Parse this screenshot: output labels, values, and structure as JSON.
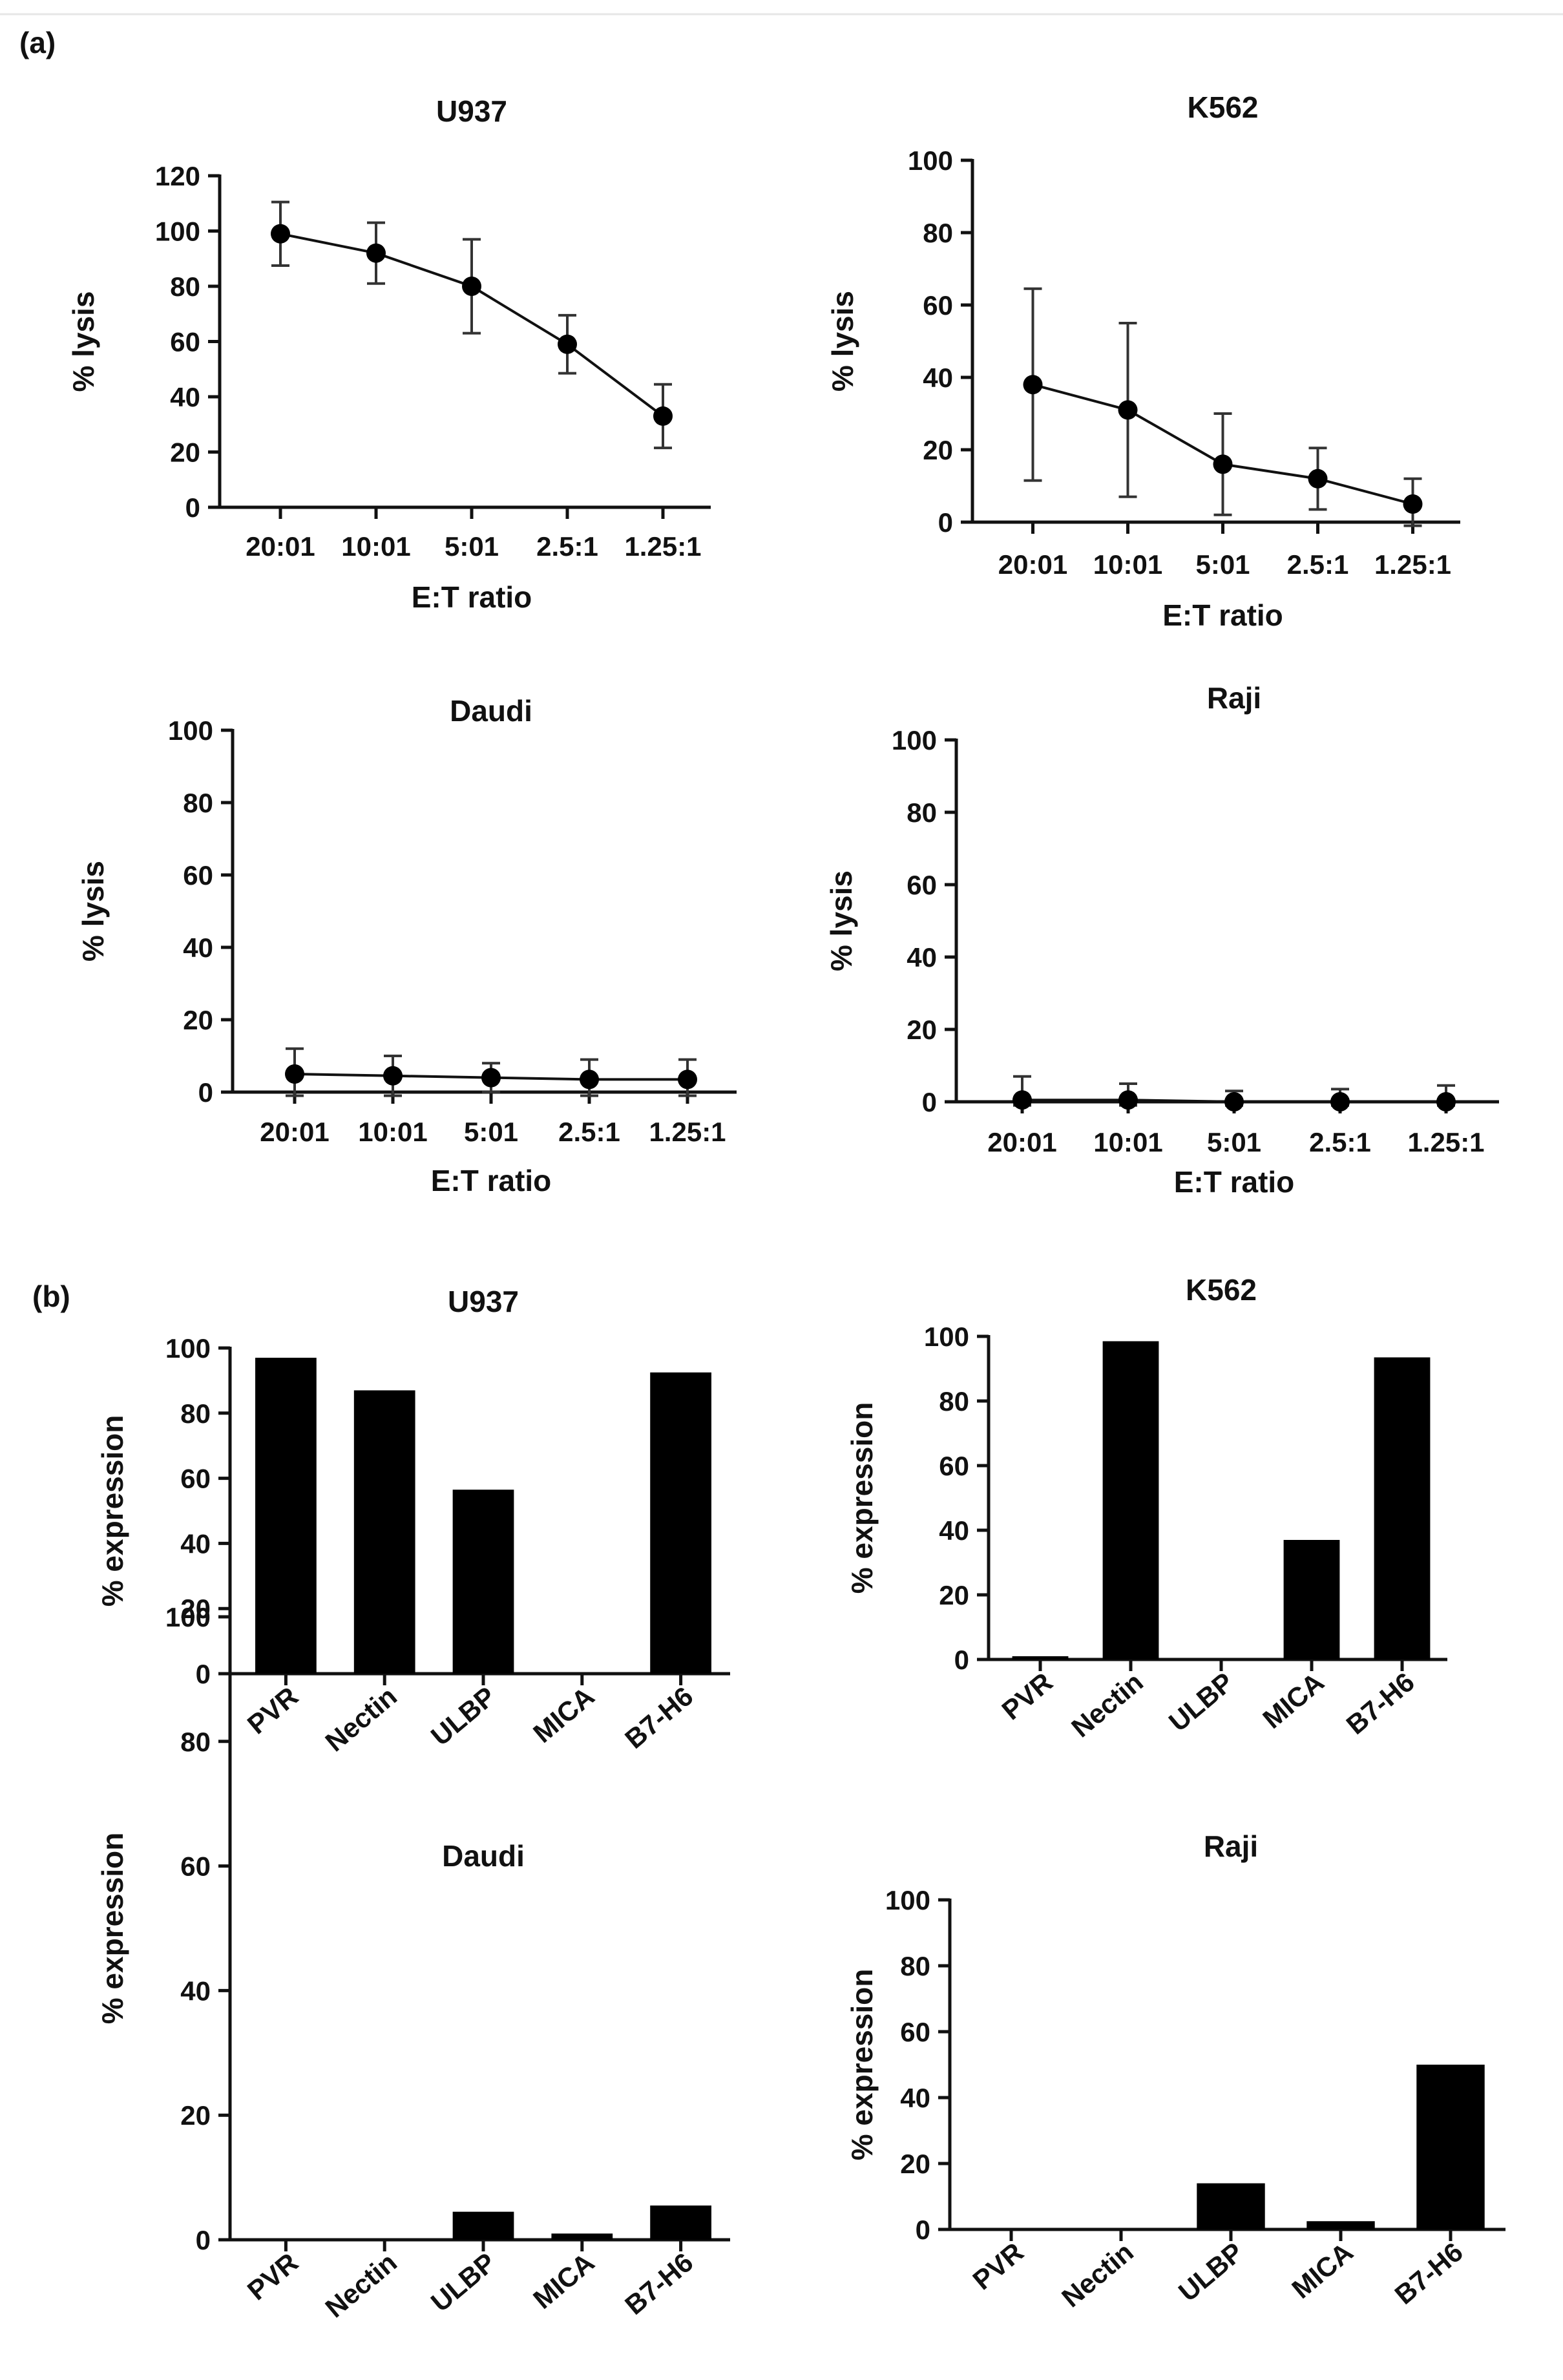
{
  "panels": {
    "a": "(a)",
    "b": "(b)"
  },
  "chart_data": [
    {
      "type": "line",
      "title": "U937",
      "xlabel": "E:T ratio",
      "ylabel": "% lysis",
      "categories": [
        "20:01",
        "10:01",
        "5:01",
        "2.5:1",
        "1.25:1"
      ],
      "values": [
        99,
        92,
        80,
        59,
        33
      ],
      "errors": [
        11.5,
        11,
        17,
        10.5,
        11.5
      ],
      "ylim": [
        0,
        120
      ],
      "yticks": [
        0,
        20,
        40,
        60,
        80,
        100,
        120
      ]
    },
    {
      "type": "line",
      "title": "K562",
      "xlabel": "E:T ratio",
      "ylabel": "% lysis",
      "categories": [
        "20:01",
        "10:01",
        "5:01",
        "2.5:1",
        "1.25:1"
      ],
      "values": [
        38,
        31,
        16,
        12,
        5
      ],
      "errors": [
        26.5,
        24,
        14,
        8.5,
        7
      ],
      "ylim": [
        0,
        100
      ],
      "yticks": [
        0,
        20,
        40,
        60,
        80,
        100
      ]
    },
    {
      "type": "line",
      "title": "Daudi",
      "xlabel": "E:T ratio",
      "ylabel": "% lysis",
      "categories": [
        "20:01",
        "10:01",
        "5:01",
        "2.5:1",
        "1.25:1"
      ],
      "values": [
        5,
        4.5,
        4,
        3.5,
        3.5
      ],
      "errors": [
        7,
        5.5,
        4,
        5.5,
        5.5
      ],
      "ylim": [
        0,
        100
      ],
      "yticks": [
        0,
        20,
        40,
        60,
        80,
        100
      ]
    },
    {
      "type": "line",
      "title": "Raji",
      "xlabel": "E:T ratio",
      "ylabel": "% lysis",
      "categories": [
        "20:01",
        "10:01",
        "5:01",
        "2.5:1",
        "1.25:1"
      ],
      "values": [
        0.5,
        0.5,
        0,
        0,
        0
      ],
      "errors": [
        6.5,
        4.5,
        3,
        3.5,
        4.5
      ],
      "ylim": [
        0,
        100
      ],
      "yticks": [
        0,
        20,
        40,
        60,
        80,
        100
      ]
    },
    {
      "type": "bar",
      "title": "U937",
      "xlabel": "",
      "ylabel": "% expression",
      "categories": [
        "PVR",
        "Nectin",
        "ULBP",
        "MICA",
        "B7-H6"
      ],
      "values": [
        97,
        87,
        56.5,
        0,
        92.5
      ],
      "ylim": [
        0,
        100
      ],
      "yticks": [
        0,
        20,
        40,
        60,
        80,
        100
      ]
    },
    {
      "type": "bar",
      "title": "K562",
      "xlabel": "",
      "ylabel": "% expression",
      "categories": [
        "PVR",
        "Nectin",
        "ULBP",
        "MICA",
        "B7-H6"
      ],
      "values": [
        1,
        98.5,
        0,
        37,
        93.5
      ],
      "ylim": [
        0,
        100
      ],
      "yticks": [
        0,
        20,
        40,
        60,
        80,
        100
      ]
    },
    {
      "type": "bar",
      "title": "Daudi",
      "xlabel": "",
      "ylabel": "% expression",
      "categories": [
        "PVR",
        "Nectin",
        "ULBP",
        "MICA",
        "B7-H6"
      ],
      "values": [
        0,
        0,
        4.5,
        1,
        5.5
      ],
      "ylim": [
        0,
        100
      ],
      "yticks": [
        0,
        20,
        40,
        60,
        80,
        100
      ]
    },
    {
      "type": "bar",
      "title": "Raji",
      "xlabel": "",
      "ylabel": "% expression",
      "categories": [
        "PVR",
        "Nectin",
        "ULBP",
        "MICA",
        "B7-H6"
      ],
      "values": [
        0,
        0,
        14,
        2.5,
        50
      ],
      "ylim": [
        0,
        100
      ],
      "yticks": [
        0,
        20,
        40,
        60,
        80,
        100
      ]
    }
  ]
}
